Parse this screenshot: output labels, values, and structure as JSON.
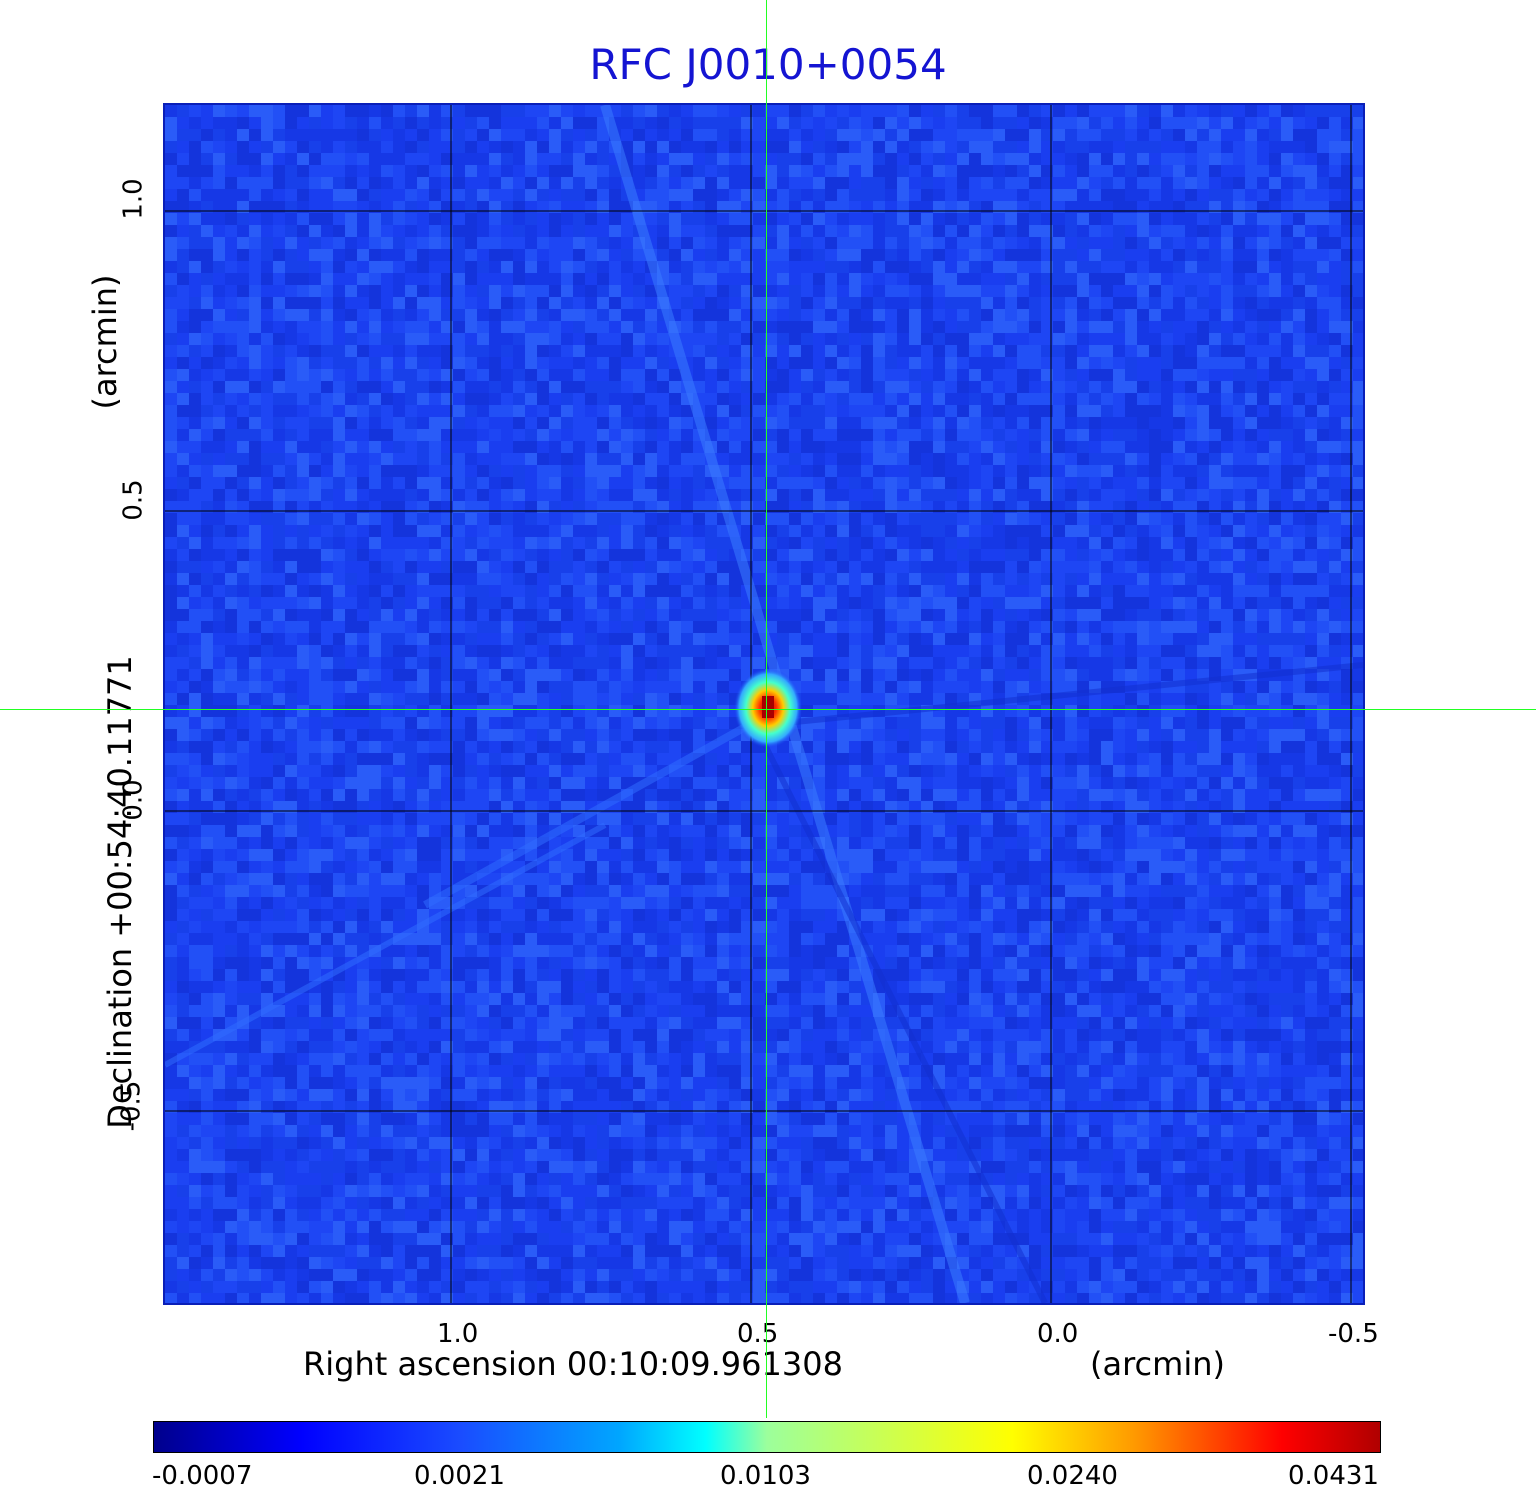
{
  "title": "RFC J0010+0054",
  "colors": {
    "title": "#1414d2",
    "background_map": "#1a3ef0",
    "grid": "#000000",
    "crosshair": "#22ff22"
  },
  "x_axis": {
    "label_left": "Right ascension  00:10:09.961308",
    "label_right": "(arcmin)",
    "ticks": [
      "1.0",
      "0.5",
      "0.0",
      "-0.5"
    ]
  },
  "y_axis": {
    "label_left": "Declination  +00:54:40.11771",
    "label_right": "(arcmin)",
    "ticks": [
      "1.0",
      "0.5",
      "0.0",
      "-0.5"
    ]
  },
  "colorbar": {
    "labels": [
      "-0.0007",
      "0.0021",
      "0.0103",
      "0.0240",
      "0.0431"
    ]
  }
}
